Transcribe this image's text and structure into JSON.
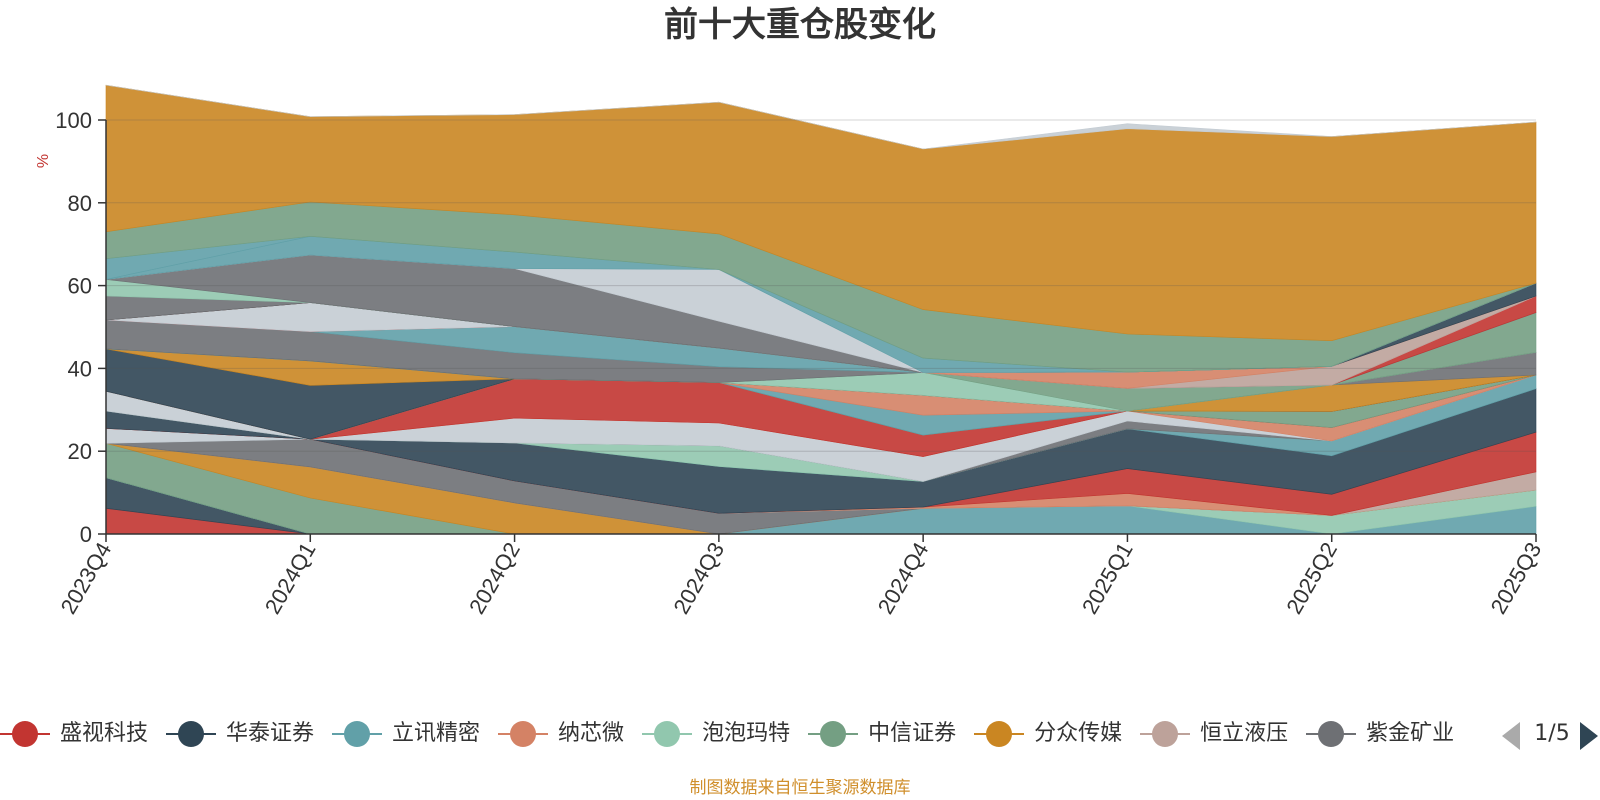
{
  "chart_data": {
    "type": "area",
    "stacked": true,
    "title": "前十大重仓股变化",
    "ylabel": "%",
    "xlabel": "",
    "ylim": [
      0,
      100
    ],
    "yticks": [
      0,
      20,
      40,
      60,
      80,
      100
    ],
    "categories": [
      "2023Q4",
      "2024Q1",
      "2024Q2",
      "2024Q3",
      "2024Q4",
      "2025Q1",
      "2025Q2",
      "2025Q3"
    ],
    "grid": true,
    "legend_position": "bottom",
    "series": [
      {
        "name": "",
        "color": "#c23531",
        "values": [
          6.2,
          0,
          0,
          0,
          0,
          0,
          0,
          0
        ]
      },
      {
        "name": "",
        "color": "#2f4554",
        "values": [
          7.4,
          0,
          0,
          0,
          0,
          0,
          0,
          0
        ]
      },
      {
        "name": "",
        "color": "#61a0a8",
        "values": [
          0,
          0,
          0,
          0,
          6.2,
          6.8,
          0,
          6.7
        ]
      },
      {
        "name": "",
        "color": "#91c7ae",
        "values": [
          0,
          0,
          0,
          0,
          0,
          0,
          4.5,
          3.9
        ]
      },
      {
        "name": "",
        "color": "#749f83",
        "values": [
          8.3,
          8.7,
          0,
          0,
          0,
          0,
          0,
          0
        ]
      },
      {
        "name": "",
        "color": "#ca8622",
        "values": [
          0,
          7.5,
          7.5,
          0,
          0,
          0,
          0,
          0
        ]
      },
      {
        "name": "",
        "color": "#bda29a",
        "values": [
          0,
          0,
          0,
          0,
          0,
          0,
          0,
          4.4
        ]
      },
      {
        "name": "",
        "color": "#6e7074",
        "values": [
          0,
          6.7,
          5.3,
          5.0,
          0,
          0,
          0,
          0
        ]
      },
      {
        "name": "",
        "color": "#c4ccd3",
        "values": [
          3.6,
          0,
          0,
          0,
          0,
          0,
          0,
          0
        ]
      },
      {
        "name": "",
        "color": "#d48265",
        "values": [
          0,
          0,
          0,
          0,
          0.3,
          3.0,
          0,
          0
        ]
      },
      {
        "name": "",
        "color": "#c23531",
        "values": [
          0,
          0,
          0,
          0,
          0,
          6.0,
          5.1,
          9.6
        ]
      },
      {
        "name": "",
        "color": "#2f4554",
        "values": [
          4.2,
          0,
          9.2,
          11.3,
          6.2,
          9.6,
          9.3,
          10.5
        ]
      },
      {
        "name": "",
        "color": "#61a0a8",
        "values": [
          0,
          0,
          0,
          0,
          0,
          0,
          3.6,
          3.3
        ]
      },
      {
        "name": "",
        "color": "#91c7ae",
        "values": [
          0,
          0,
          0,
          5.0,
          0,
          0,
          0,
          0
        ]
      },
      {
        "name": "",
        "color": "#6e7074",
        "values": [
          0,
          0,
          0,
          0,
          0,
          1.9,
          0,
          0
        ]
      },
      {
        "name": "",
        "color": "#c4ccd3",
        "values": [
          4.8,
          0,
          6.0,
          5.5,
          6.0,
          2.4,
          0,
          0
        ]
      },
      {
        "name": "",
        "color": "#d48265",
        "values": [
          0,
          0,
          0,
          0,
          0,
          0,
          3.2,
          0
        ]
      },
      {
        "name": "",
        "color": "#c23531",
        "values": [
          0,
          0,
          9.5,
          9.8,
          5.2,
          0,
          0,
          0
        ]
      },
      {
        "name": "",
        "color": "#749f83",
        "values": [
          0,
          0,
          0,
          0,
          0,
          0,
          3.9,
          0
        ]
      },
      {
        "name": "",
        "color": "#61a0a8",
        "values": [
          0,
          0,
          0,
          0,
          4.8,
          0,
          0,
          0
        ]
      },
      {
        "name": "",
        "color": "#d48265",
        "values": [
          0,
          0,
          0,
          0,
          4.8,
          0,
          0,
          0
        ]
      },
      {
        "name": "",
        "color": "#2f4554",
        "values": [
          10.2,
          13.0,
          0,
          0,
          0,
          0,
          0,
          0
        ]
      },
      {
        "name": "",
        "color": "#ca8622",
        "values": [
          0,
          5.9,
          0,
          0,
          0,
          0,
          6.4,
          0
        ]
      },
      {
        "name": "",
        "color": "#6e7074",
        "values": [
          0,
          0,
          0,
          0,
          0,
          0,
          0,
          5.5
        ]
      },
      {
        "name": "",
        "color": "#91c7ae",
        "values": [
          0,
          0,
          0,
          0,
          5.5,
          0,
          0,
          0
        ]
      },
      {
        "name": "",
        "color": "#749f83",
        "values": [
          0,
          0,
          0,
          0,
          0,
          5.5,
          0,
          9.6
        ]
      },
      {
        "name": "",
        "color": "#6e7074",
        "values": [
          7.0,
          7.1,
          6.3,
          3.8,
          0,
          0,
          0,
          0
        ]
      },
      {
        "name": "",
        "color": "#61a0a8",
        "values": [
          0,
          0,
          6.3,
          4.5,
          0,
          0,
          0,
          0
        ]
      },
      {
        "name": "",
        "color": "#c23531",
        "values": [
          0,
          0,
          0,
          0,
          0,
          0,
          0,
          4.0
        ]
      },
      {
        "name": "",
        "color": "#c4ccd3",
        "values": [
          0,
          7.0,
          0,
          0,
          0,
          0,
          0,
          0
        ]
      },
      {
        "name": "",
        "color": "#bda29a",
        "values": [
          0,
          0,
          0,
          0,
          0,
          0,
          4.5,
          0
        ]
      },
      {
        "name": "",
        "color": "#d48265",
        "values": [
          0,
          0,
          0,
          0,
          0,
          3.9,
          0,
          0
        ]
      },
      {
        "name": "",
        "color": "#2f4554",
        "values": [
          0,
          0,
          0,
          0,
          0,
          0,
          0,
          3.1
        ]
      },
      {
        "name": "",
        "color": "#6e7074",
        "values": [
          5.8,
          0,
          0,
          0,
          0,
          0,
          0,
          0
        ]
      },
      {
        "name": "",
        "color": "#91c7ae",
        "values": [
          4.0,
          0,
          0,
          0,
          0,
          0,
          0,
          0
        ]
      },
      {
        "name": "",
        "color": "#6e7074",
        "values": [
          0,
          11.5,
          14.0,
          6.5,
          0,
          0,
          0,
          0
        ]
      },
      {
        "name": "",
        "color": "#c4ccd3",
        "values": [
          0,
          0,
          0,
          12.5,
          0,
          0,
          0,
          0
        ]
      },
      {
        "name": "",
        "color": "#61a0a8",
        "values": [
          0,
          4.5,
          4.0,
          0,
          3.5,
          0,
          0,
          0
        ]
      },
      {
        "name": "",
        "color": "#61a0a8",
        "values": [
          5.0,
          0,
          0,
          0,
          0,
          0,
          0,
          0
        ]
      },
      {
        "name": "",
        "color": "#749f83",
        "values": [
          6.5,
          8.3,
          9.0,
          8.6,
          11.7,
          9.2,
          6.2,
          0
        ]
      },
      {
        "name": "",
        "color": "#ca8622",
        "values": [
          35.4,
          20.6,
          24.2,
          31.8,
          38.8,
          49.6,
          49.3,
          38.9
        ]
      },
      {
        "name": "",
        "color": "#c4ccd3",
        "values": [
          0,
          0,
          0,
          0,
          0,
          1.2,
          0,
          0
        ]
      }
    ]
  },
  "legend": {
    "items": [
      {
        "label": "盛视科技",
        "color": "#c23531"
      },
      {
        "label": "华泰证券",
        "color": "#2f4554"
      },
      {
        "label": "立讯精密",
        "color": "#61a0a8"
      },
      {
        "label": "纳芯微",
        "color": "#d48265"
      },
      {
        "label": "泡泡玛特",
        "color": "#91c7ae"
      },
      {
        "label": "中信证券",
        "color": "#749f83"
      },
      {
        "label": "分众传媒",
        "color": "#ca8622"
      },
      {
        "label": "恒立液压",
        "color": "#bda29a"
      },
      {
        "label": "紫金矿业",
        "color": "#6e7074"
      }
    ],
    "page": "1/5"
  },
  "source_note": "制图数据来自恒生聚源数据库"
}
